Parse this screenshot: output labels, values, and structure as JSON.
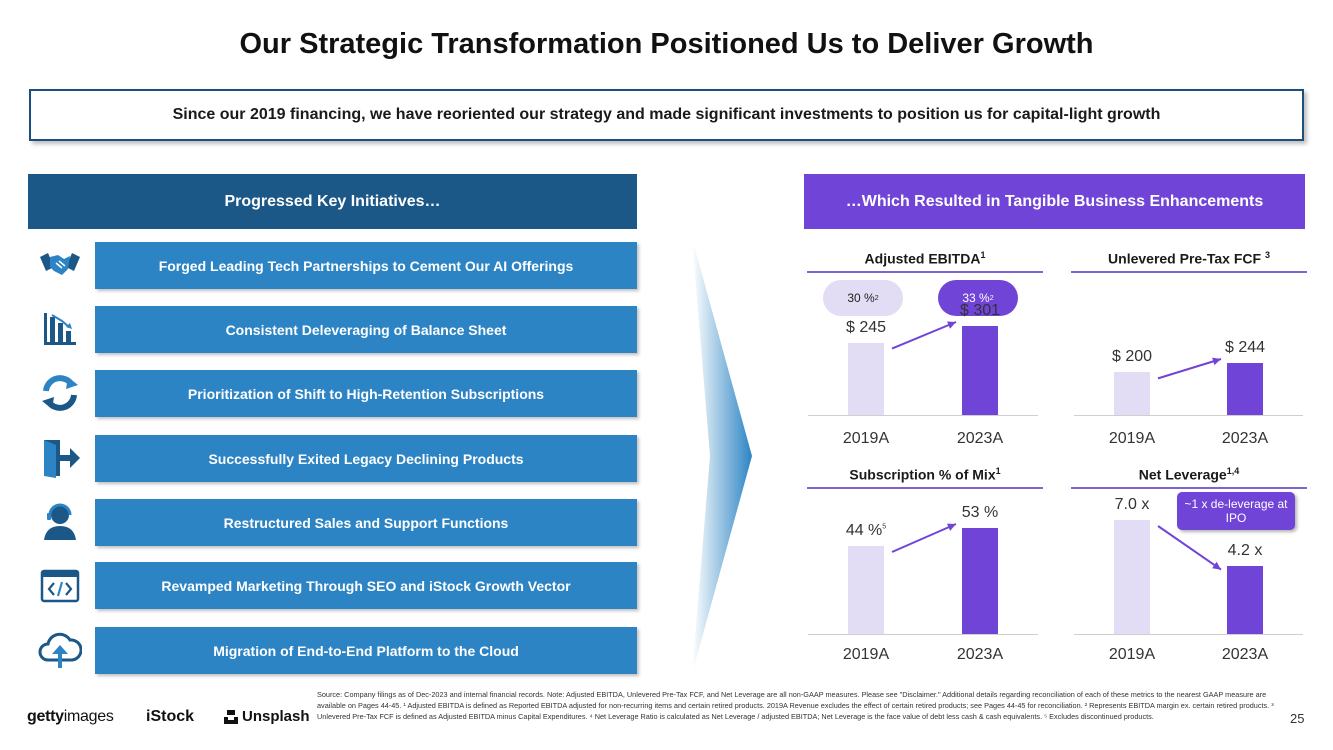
{
  "title": "Our Strategic Transformation Positioned Us to Deliver Growth",
  "banner": "Since our 2019 financing, we have reoriented our strategy and made significant investments to position us for capital-light growth",
  "left_header": "Progressed Key Initiatives…",
  "right_header": "…Which Resulted in Tangible Business Enhancements",
  "initiatives": [
    {
      "label": "Forged Leading Tech Partnerships to Cement Our AI Offerings",
      "icon": "handshake-icon"
    },
    {
      "label": "Consistent Deleveraging of Balance Sheet",
      "icon": "bar-chart-down-icon"
    },
    {
      "label": "Prioritization of Shift to High-Retention Subscriptions",
      "icon": "refresh-icon"
    },
    {
      "label": "Successfully Exited Legacy Declining Products",
      "icon": "exit-door-icon"
    },
    {
      "label": "Restructured Sales and Support Functions",
      "icon": "support-agent-icon"
    },
    {
      "label": "Revamped Marketing Through SEO and iStock Growth Vector",
      "icon": "code-window-icon"
    },
    {
      "label": "Migration of End-to-End Platform to the Cloud",
      "icon": "cloud-upload-icon"
    }
  ],
  "chart_data": [
    {
      "type": "bar",
      "title": "Adjusted EBITDA",
      "title_sup": "1",
      "categories": [
        "2019A",
        "2023A"
      ],
      "values": [
        245,
        301
      ],
      "value_labels": [
        "$ 245",
        "$ 301"
      ],
      "ylim": [
        0,
        301
      ],
      "margin_pills": [
        {
          "text": "30 %",
          "sup": "2"
        },
        {
          "text": "33 %",
          "sup": "2"
        }
      ]
    },
    {
      "type": "bar",
      "title": "Unlevered Pre-Tax FCF",
      "title_sup": "3",
      "categories": [
        "2019A",
        "2023A"
      ],
      "values": [
        200,
        244
      ],
      "value_labels": [
        "$ 200",
        "$ 244"
      ],
      "ylim": [
        0,
        244
      ]
    },
    {
      "type": "bar",
      "title": "Subscription % of Mix",
      "title_sup": "1",
      "categories": [
        "2019A",
        "2023A"
      ],
      "values": [
        44,
        53
      ],
      "value_labels": [
        "44 %",
        "53 %"
      ],
      "label_sup": "5",
      "ylim": [
        0,
        53
      ]
    },
    {
      "type": "bar",
      "title": "Net Leverage",
      "title_sup": "1,4",
      "categories": [
        "2019A",
        "2023A"
      ],
      "values": [
        7.0,
        4.2
      ],
      "value_labels": [
        "7.0 x",
        "4.2 x"
      ],
      "ylim": [
        0,
        7.0
      ],
      "callout": "~1 x de-leverage at IPO"
    }
  ],
  "source_note": "Source: Company filings as of Dec-2023 and internal financial records. Note: Adjusted EBITDA, Unlevered Pre-Tax FCF, and Net Leverage are all non-GAAP measures. Please see \"Disclaimer.\" Additional details regarding reconciliation of each of these metrics to the nearest GAAP measure are available on Pages 44-45. ¹ Adjusted EBITDA is defined as Reported EBITDA adjusted for non-recurring items and certain retired products. 2019A Revenue excludes the effect of certain retired products; see Pages 44-45 for reconciliation. ² Represents EBITDA margin ex. certain retired products. ³ Unlevered Pre-Tax FCF is defined as Adjusted EBITDA minus Capital Expenditures. ⁴ Net Leverage Ratio is calculated as Net Leverage / adjusted EBITDA; Net Leverage is the face value of debt less cash & cash equivalents. ⁵ Excludes discontinued products.",
  "logos": {
    "getty_main": "getty",
    "getty_sub": "images",
    "istock": "iStock",
    "unsplash": "Unsplash"
  },
  "page_number": "25",
  "colors": {
    "navy": "#1b5787",
    "blue": "#2c84c4",
    "purple": "#7144d8",
    "light_purple": "#e3dcf5"
  }
}
